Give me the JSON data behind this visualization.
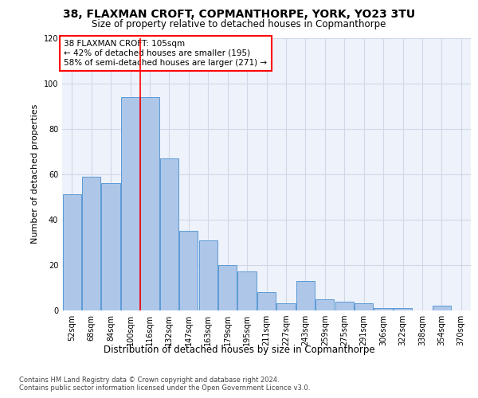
{
  "title1": "38, FLAXMAN CROFT, COPMANTHORPE, YORK, YO23 3TU",
  "title2": "Size of property relative to detached houses in Copmanthorpe",
  "xlabel": "Distribution of detached houses by size in Copmanthorpe",
  "ylabel": "Number of detached properties",
  "categories": [
    "52sqm",
    "68sqm",
    "84sqm",
    "100sqm",
    "116sqm",
    "132sqm",
    "147sqm",
    "163sqm",
    "179sqm",
    "195sqm",
    "211sqm",
    "227sqm",
    "243sqm",
    "259sqm",
    "275sqm",
    "291sqm",
    "306sqm",
    "322sqm",
    "338sqm",
    "354sqm",
    "370sqm"
  ],
  "values": [
    51,
    59,
    56,
    94,
    94,
    67,
    35,
    31,
    20,
    17,
    8,
    3,
    13,
    5,
    4,
    3,
    1,
    1,
    0,
    2,
    0
  ],
  "bar_color": "#aec6e8",
  "bar_edge_color": "#5b9bd5",
  "grid_color": "#d0d8e8",
  "background_color": "#eef2fb",
  "annotation_text": "38 FLAXMAN CROFT: 105sqm\n← 42% of detached houses are smaller (195)\n58% of semi-detached houses are larger (271) →",
  "annotation_box_color": "white",
  "annotation_box_edge_color": "red",
  "vline_color": "red",
  "vline_pos": 3.5,
  "footer1": "Contains HM Land Registry data © Crown copyright and database right 2024.",
  "footer2": "Contains public sector information licensed under the Open Government Licence v3.0.",
  "ylim": [
    0,
    120
  ],
  "yticks": [
    0,
    20,
    40,
    60,
    80,
    100,
    120
  ],
  "title1_fontsize": 10,
  "title2_fontsize": 8.5,
  "ylabel_fontsize": 8,
  "xlabel_fontsize": 8.5,
  "tick_fontsize": 7,
  "annot_fontsize": 7.5,
  "footer_fontsize": 6
}
